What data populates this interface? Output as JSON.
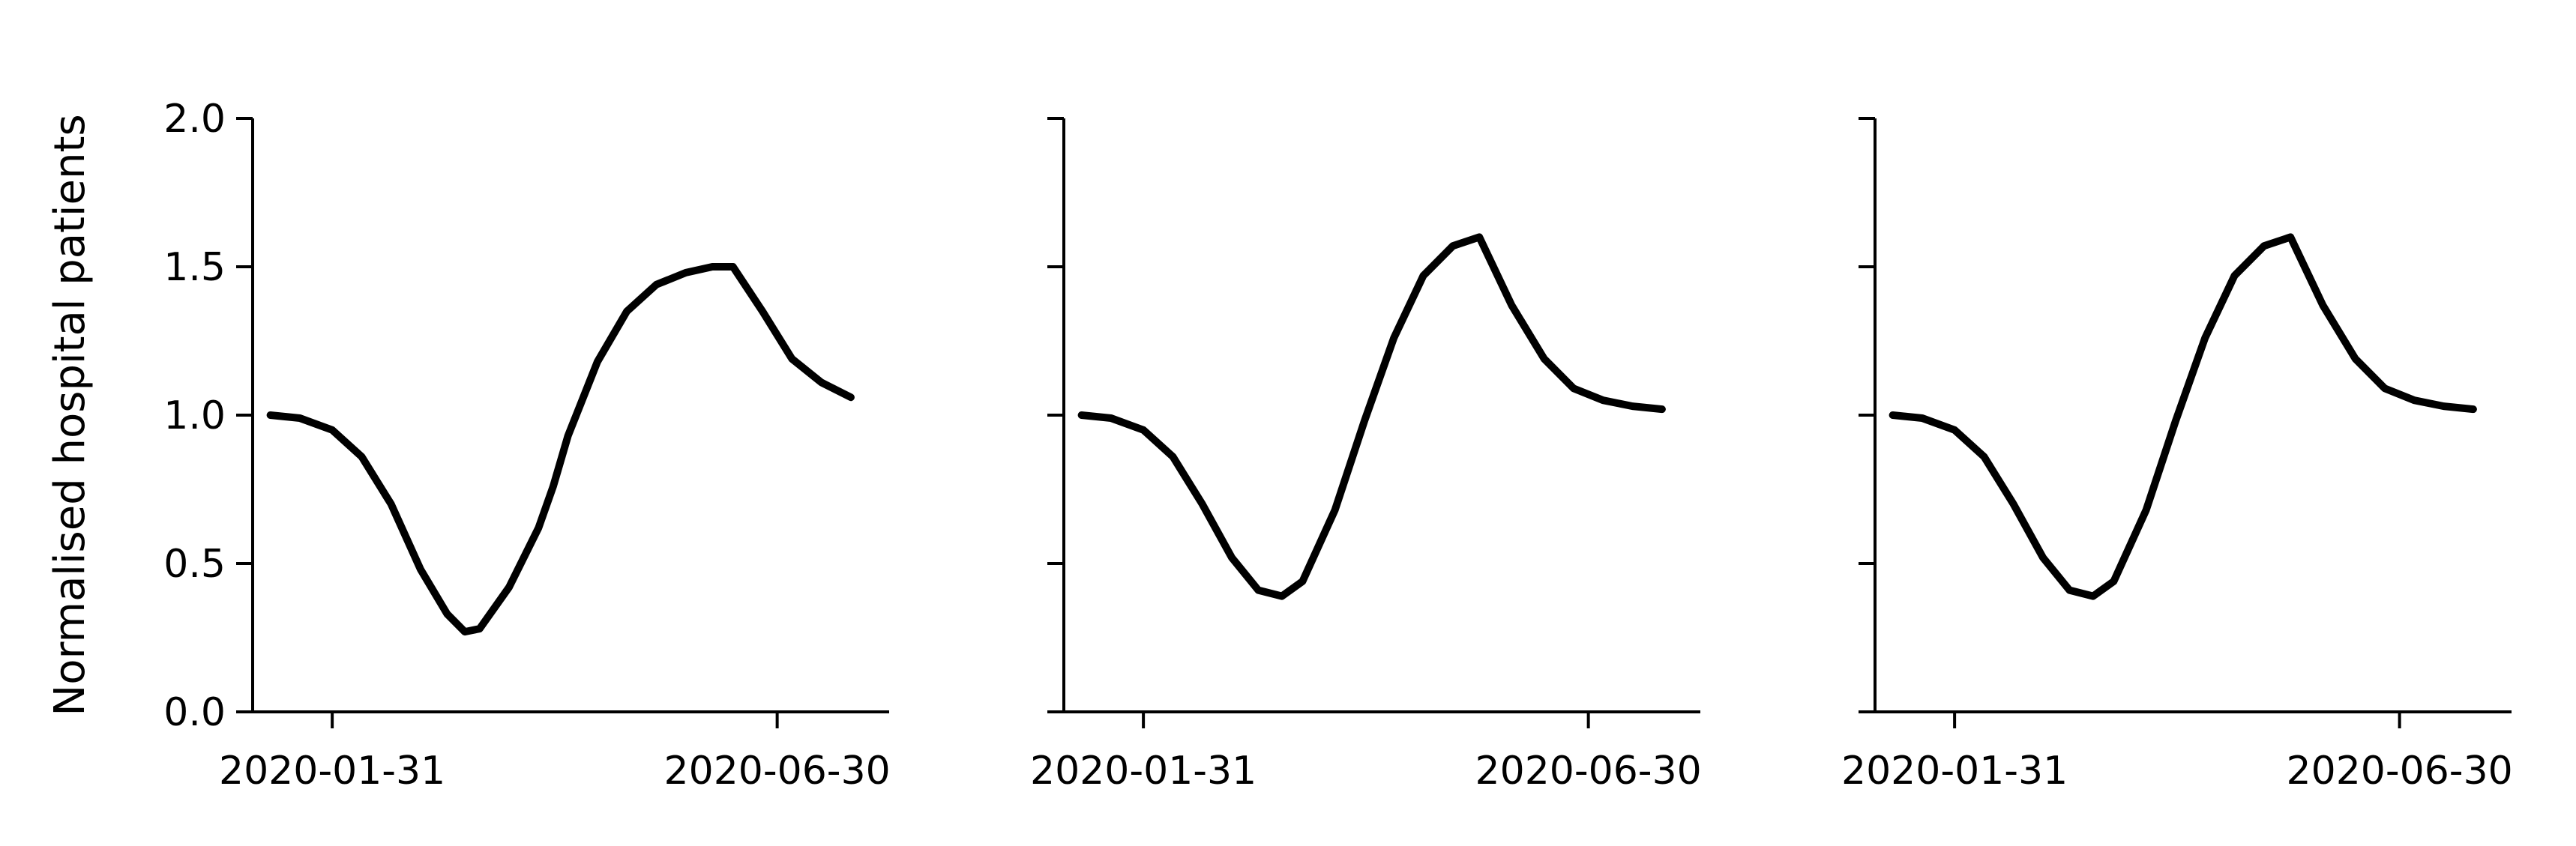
{
  "chart_data": [
    {
      "type": "line",
      "ylabel": "Normalised hospital patients",
      "ylim": [
        0,
        2.0
      ],
      "yticks": [
        "0.0",
        "0.5",
        "1.0",
        "1.5",
        "2.0"
      ],
      "xlim": [
        "2020-01-04",
        "2020-08-07"
      ],
      "xticks": [
        "2020-01-31",
        "2020-06-30"
      ],
      "grid": false,
      "legend": "none",
      "series": [
        {
          "color": "#000000",
          "x": [
            "2020-01-10",
            "2020-01-20",
            "2020-01-31",
            "2020-02-10",
            "2020-02-20",
            "2020-03-01",
            "2020-03-10",
            "2020-03-16",
            "2020-03-21",
            "2020-03-31",
            "2020-04-10",
            "2020-04-15",
            "2020-04-20",
            "2020-04-30",
            "2020-05-10",
            "2020-05-20",
            "2020-05-30",
            "2020-06-08",
            "2020-06-15",
            "2020-06-25",
            "2020-07-05",
            "2020-07-15",
            "2020-07-25"
          ],
          "y": [
            1.0,
            0.99,
            0.95,
            0.86,
            0.7,
            0.48,
            0.33,
            0.27,
            0.28,
            0.42,
            0.62,
            0.76,
            0.93,
            1.18,
            1.35,
            1.44,
            1.48,
            1.5,
            1.5,
            1.35,
            1.19,
            1.11,
            1.06
          ]
        }
      ]
    },
    {
      "type": "line",
      "ylim": [
        0,
        2.0
      ],
      "yticks": [
        "0.0",
        "0.5",
        "1.0",
        "1.5",
        "2.0"
      ],
      "xlim": [
        "2020-01-04",
        "2020-08-07"
      ],
      "xticks": [
        "2020-01-31",
        "2020-06-30"
      ],
      "grid": false,
      "legend": "none",
      "series": [
        {
          "color": "#000000",
          "x": [
            "2020-01-10",
            "2020-01-20",
            "2020-01-31",
            "2020-02-10",
            "2020-02-20",
            "2020-03-01",
            "2020-03-10",
            "2020-03-18",
            "2020-03-25",
            "2020-04-05",
            "2020-04-15",
            "2020-04-25",
            "2020-05-05",
            "2020-05-15",
            "2020-05-24",
            "2020-06-04",
            "2020-06-15",
            "2020-06-25",
            "2020-07-05",
            "2020-07-15",
            "2020-07-25"
          ],
          "y": [
            1.0,
            0.99,
            0.95,
            0.86,
            0.7,
            0.52,
            0.41,
            0.39,
            0.44,
            0.68,
            0.98,
            1.26,
            1.47,
            1.57,
            1.6,
            1.37,
            1.19,
            1.09,
            1.05,
            1.03,
            1.02
          ]
        }
      ]
    },
    {
      "type": "line",
      "ylim": [
        0,
        2.0
      ],
      "yticks": [
        "0.0",
        "0.5",
        "1.0",
        "1.5",
        "2.0"
      ],
      "xlim": [
        "2020-01-04",
        "2020-08-07"
      ],
      "xticks": [
        "2020-01-31",
        "2020-06-30"
      ],
      "grid": false,
      "legend": "none",
      "series": [
        {
          "color": "#000000",
          "x": [
            "2020-01-10",
            "2020-01-20",
            "2020-01-31",
            "2020-02-10",
            "2020-02-20",
            "2020-03-01",
            "2020-03-10",
            "2020-03-18",
            "2020-03-25",
            "2020-04-05",
            "2020-04-15",
            "2020-04-25",
            "2020-05-05",
            "2020-05-15",
            "2020-05-24",
            "2020-06-04",
            "2020-06-15",
            "2020-06-25",
            "2020-07-05",
            "2020-07-15",
            "2020-07-25"
          ],
          "y": [
            1.0,
            0.99,
            0.95,
            0.86,
            0.7,
            0.52,
            0.41,
            0.39,
            0.44,
            0.68,
            0.98,
            1.26,
            1.47,
            1.57,
            1.6,
            1.37,
            1.19,
            1.09,
            1.05,
            1.03,
            1.02
          ]
        }
      ]
    }
  ]
}
